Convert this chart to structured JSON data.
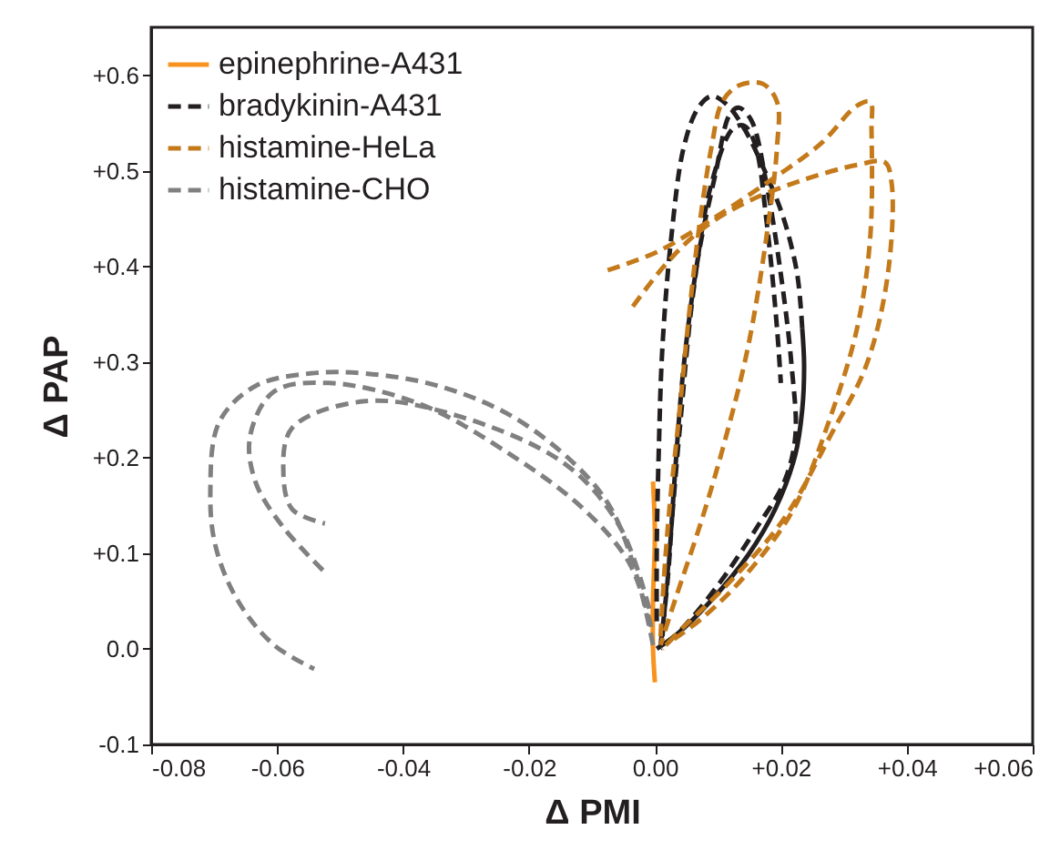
{
  "chart_data": {
    "type": "line",
    "xlabel": "Δ PMI",
    "ylabel": "Δ PAP",
    "xlim": [
      -0.08,
      0.06
    ],
    "ylim": [
      -0.1,
      0.65
    ],
    "xticks": [
      {
        "value": -0.08,
        "label": "-0.08"
      },
      {
        "value": -0.06,
        "label": "-0.06"
      },
      {
        "value": -0.04,
        "label": "-0.04"
      },
      {
        "value": -0.02,
        "label": "-0.02"
      },
      {
        "value": 0,
        "label": "0.00"
      },
      {
        "value": 0.02,
        "label": "+0.02"
      },
      {
        "value": 0.04,
        "label": "+0.04"
      },
      {
        "value": 0.06,
        "label": "+0.06"
      }
    ],
    "yticks": [
      {
        "value": -0.1,
        "label": "-0.1"
      },
      {
        "value": 0,
        "label": "0.0"
      },
      {
        "value": 0.1,
        "label": "+0.1"
      },
      {
        "value": 0.2,
        "label": "+0.2"
      },
      {
        "value": 0.3,
        "label": "+0.3"
      },
      {
        "value": 0.4,
        "label": "+0.4"
      },
      {
        "value": 0.5,
        "label": "+0.5"
      },
      {
        "value": 0.6,
        "label": "+0.6"
      }
    ],
    "grid": false,
    "legend": "top left",
    "series": [
      {
        "name": "epinephrine-A431",
        "color": "#f7931e",
        "line_style": "solid",
        "x": [
          0,
          -0.0003,
          -0.0003,
          0,
          -0.0003
        ],
        "values": [
          -0.035,
          0.0,
          0.05,
          0.12,
          0.175
        ]
      },
      {
        "name": "bradykinin-A431",
        "color": "#231f20",
        "line_style": "dashed",
        "x": [
          0.0234,
          0.0226,
          0.0205,
          0.0177,
          0.0142,
          0.0113,
          0.009,
          0.0069,
          0.0046,
          0.0026,
          0.0012,
          0.0006,
          0.0003,
          0.0003
        ],
        "values": [
          0.335,
          0.392,
          0.449,
          0.496,
          0.544,
          0.57,
          0.578,
          0.566,
          0.525,
          0.43,
          0.316,
          0.203,
          0.108,
          0.023
        ]
      },
      {
        "color": "#231f20",
        "line_style": "solid",
        "x": [
          0.0003,
          0.0038,
          0.009,
          0.0148,
          0.0191,
          0.0223,
          0.0234,
          0.0237,
          0.0234
        ],
        "values": [
          0,
          0.017,
          0.051,
          0.098,
          0.146,
          0.203,
          0.25,
          0.297,
          0.335
        ]
      },
      {
        "color": "#231f20",
        "line_style": "dashed",
        "x": [
          0.0009,
          0.002,
          0.0032,
          0.0046,
          0.0069,
          0.0096,
          0.0119,
          0.0133,
          0.0153,
          0.0177,
          0.02,
          0.0217,
          0.0223,
          0.0205,
          0.0162,
          0.0104,
          0.0046,
          0.0009
        ],
        "values": [
          0.004,
          0.07,
          0.184,
          0.297,
          0.411,
          0.496,
          0.559,
          0.566,
          0.553,
          0.487,
          0.392,
          0.297,
          0.222,
          0.174,
          0.127,
          0.07,
          0.023,
          0
        ]
      },
      {
        "color": "#231f20",
        "line_style": "dashed",
        "x": [
          0.0012,
          0.0026,
          0.0041,
          0.0061,
          0.009,
          0.0124,
          0.0142,
          0.0159,
          0.0177,
          0.0194,
          0.02
        ],
        "values": [
          0.013,
          0.127,
          0.241,
          0.373,
          0.487,
          0.544,
          0.547,
          0.528,
          0.449,
          0.335,
          0.278
        ]
      },
      {
        "name": "histamine-HeLa",
        "color": "#c47a1a",
        "line_style": "dashed",
        "x": [
          -0.0075,
          0.0003,
          0.009,
          0.0177,
          0.0263,
          0.0321,
          0.0342,
          0.0344,
          0.0342,
          0.0321,
          0.0278,
          0.022,
          0.0148,
          0.0075,
          0.0017
        ],
        "values": [
          0.396,
          0.415,
          0.449,
          0.487,
          0.528,
          0.568,
          0.572,
          0.544,
          0.43,
          0.335,
          0.241,
          0.146,
          0.08,
          0.032,
          0.004
        ]
      },
      {
        "color": "#c47a1a",
        "line_style": "dashed",
        "x": [
          -0.0035,
          0.0017,
          0.0075,
          0.0148,
          0.0234,
          0.0321,
          0.0365,
          0.0376,
          0.037,
          0.0336,
          0.0278,
          0.0205,
          0.0119,
          0.0046,
          0.0012
        ],
        "values": [
          0.358,
          0.402,
          0.439,
          0.468,
          0.49,
          0.506,
          0.509,
          0.487,
          0.392,
          0.297,
          0.222,
          0.136,
          0.07,
          0.023,
          0
        ]
      },
      {
        "color": "#c47a1a",
        "line_style": "dashed",
        "x": [
          0.0009,
          0.0014,
          0.0023,
          0.0038,
          0.0055,
          0.0072,
          0.009,
          0.0107,
          0.0133,
          0.0171,
          0.0194,
          0.0194,
          0.0177,
          0.0148,
          0.0113,
          0.0075,
          0.0032,
          0.0009
        ],
        "values": [
          0.013,
          0.07,
          0.146,
          0.241,
          0.354,
          0.449,
          0.525,
          0.572,
          0.589,
          0.591,
          0.572,
          0.525,
          0.43,
          0.316,
          0.222,
          0.136,
          0.051,
          0.004
        ]
      },
      {
        "name": "histamine-CHO",
        "color": "#808080",
        "line_style": "dashed",
        "x": [
          -0.0003,
          -0.0026,
          -0.0069,
          -0.0127,
          -0.0229,
          -0.0344,
          -0.046,
          -0.0547,
          -0.0634,
          -0.0692,
          -0.0706,
          -0.0698,
          -0.0663,
          -0.0605,
          -0.0541
        ],
        "values": [
          0.004,
          0.07,
          0.146,
          0.193,
          0.244,
          0.275,
          0.288,
          0.288,
          0.275,
          0.237,
          0.165,
          0.108,
          0.051,
          0.004,
          -0.021
        ]
      },
      {
        "color": "#808080",
        "line_style": "dashed",
        "x": [
          -0.0006,
          -0.004,
          -0.0113,
          -0.0229,
          -0.0373,
          -0.0518,
          -0.0605,
          -0.0643,
          -0.0634,
          -0.059,
          -0.0524
        ],
        "values": [
          0.023,
          0.089,
          0.146,
          0.203,
          0.256,
          0.278,
          0.269,
          0.222,
          0.174,
          0.127,
          0.08
        ]
      },
      {
        "color": "#808080",
        "line_style": "dashed",
        "x": [
          -0.0009,
          -0.0055,
          -0.0142,
          -0.0315,
          -0.046,
          -0.0576,
          -0.059,
          -0.0576,
          -0.0524
        ],
        "values": [
          0.042,
          0.127,
          0.193,
          0.244,
          0.259,
          0.231,
          0.184,
          0.146,
          0.131
        ]
      }
    ]
  }
}
